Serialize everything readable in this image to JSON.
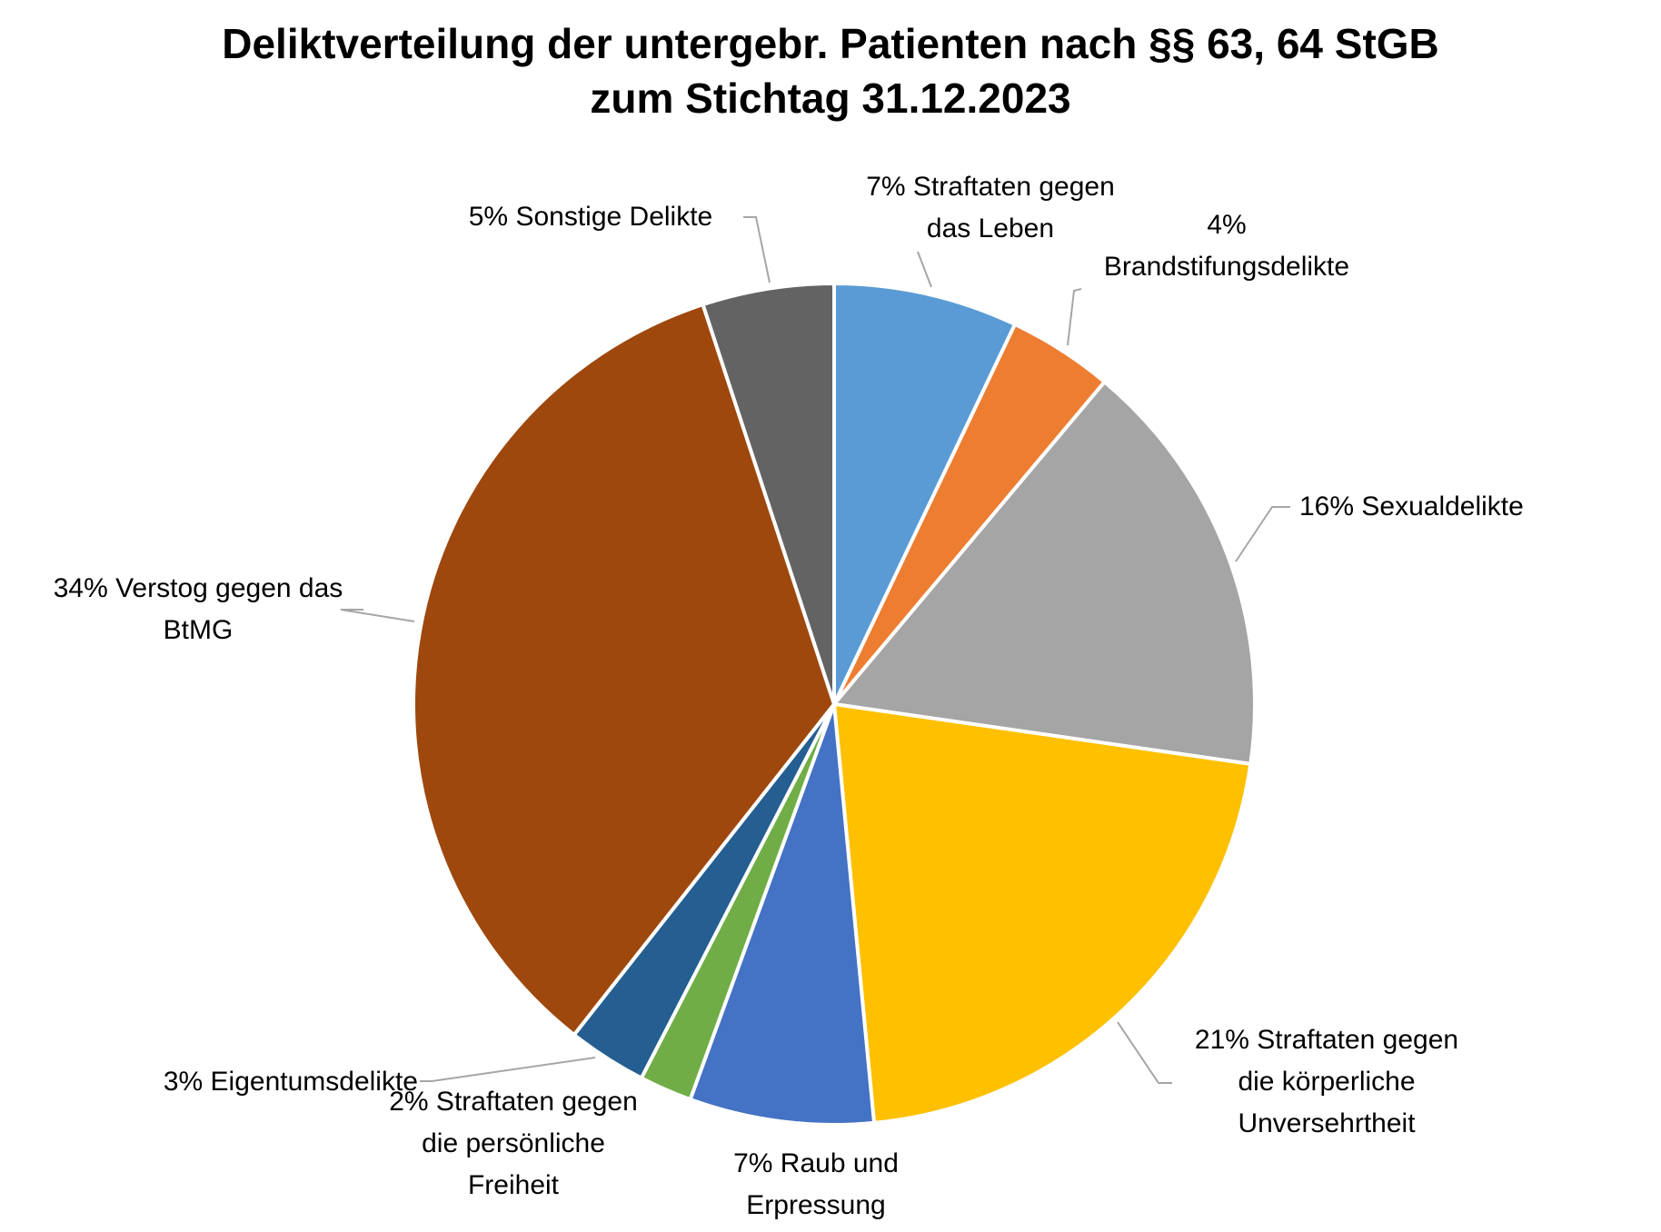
{
  "chart_data": {
    "type": "pie",
    "title": "Deliktverteilung der untergebr. Patienten nach §§ 63, 64 StGB",
    "subtitle": "zum Stichtag 31.12.2023",
    "slices": [
      {
        "label_lines": [
          "7% Straftaten gegen",
          "das Leben"
        ],
        "value": 7,
        "color": "#5B9BD5"
      },
      {
        "label_lines": [
          "4%",
          "Brandstifungsdelikte"
        ],
        "value": 4,
        "color": "#ED7D31"
      },
      {
        "label_lines": [
          "16% Sexualdelikte"
        ],
        "value": 16,
        "color": "#A5A5A5"
      },
      {
        "label_lines": [
          "21% Straftaten gegen",
          "die körperliche",
          "Unversehrtheit"
        ],
        "value": 21,
        "color": "#FFC000"
      },
      {
        "label_lines": [
          "7% Raub und",
          "Erpressung"
        ],
        "value": 7,
        "color": "#4472C4"
      },
      {
        "label_lines": [
          "2% Straftaten gegen",
          "die persönliche",
          "Freiheit"
        ],
        "value": 2,
        "color": "#70AD47"
      },
      {
        "label_lines": [
          "3% Eigentumsdelikte"
        ],
        "value": 3,
        "color": "#255E91"
      },
      {
        "label_lines": [
          "34% Verstog gegen das",
          "BtMG"
        ],
        "value": 34,
        "color": "#9E480E"
      },
      {
        "label_lines": [
          "5% Sonstige Delikte"
        ],
        "value": 5,
        "color": "#636363"
      }
    ]
  }
}
